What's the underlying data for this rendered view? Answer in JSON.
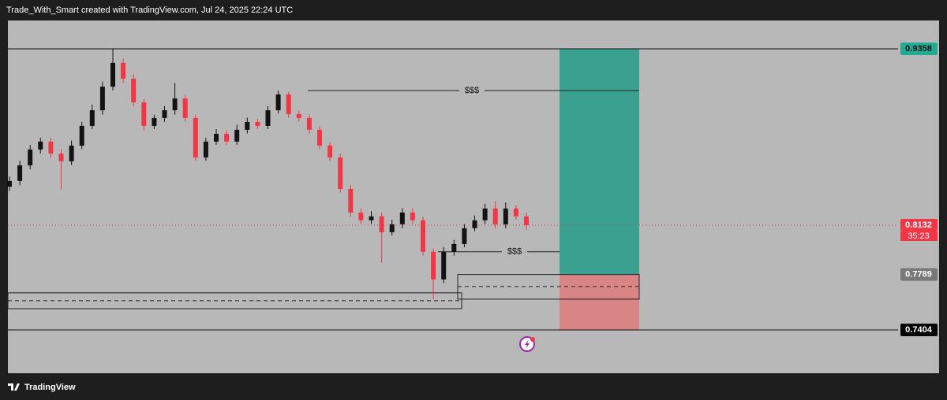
{
  "header": {
    "title": "Trade_With_Smart created with TradingView.com, Jul 24, 2025 22:24 UTC"
  },
  "footer": {
    "brand": "TradingView"
  },
  "chart_data": {
    "type": "candlestick",
    "ylim": [
      0.7103,
      0.9555
    ],
    "yticks": [
      0.9358,
      0.8132,
      0.7789,
      0.7404
    ],
    "countdown": "35:23",
    "up_color": "#131313",
    "down_color": "#f23645",
    "open": [
      0.84,
      0.8439,
      0.8548,
      0.8658,
      0.8713,
      0.863,
      0.8576,
      0.8685,
      0.8822,
      0.8931,
      0.9095,
      0.926,
      0.915,
      0.8986,
      0.8822,
      0.8877,
      0.8931,
      0.9013,
      0.8877,
      0.8603,
      0.8713,
      0.8767,
      0.8713,
      0.8795,
      0.8849,
      0.8822,
      0.8931,
      0.9041,
      0.8904,
      0.8877,
      0.8795,
      0.8685,
      0.8603,
      0.8384,
      0.822,
      0.8166,
      0.8193,
      0.8083,
      0.8138,
      0.822,
      0.8166,
      0.7947,
      0.7755,
      0.7947,
      0.8001,
      0.8111,
      0.8166,
      0.8248,
      0.8138,
      0.8248,
      0.8193
    ],
    "high": [
      0.847,
      0.858,
      0.869,
      0.874,
      0.874,
      0.866,
      0.872,
      0.885,
      0.897,
      0.913,
      0.9358,
      0.929,
      0.918,
      0.901,
      0.89,
      0.896,
      0.912,
      0.904,
      0.89,
      0.874,
      0.88,
      0.879,
      0.883,
      0.888,
      0.887,
      0.896,
      0.9068,
      0.906,
      0.893,
      0.89,
      0.882,
      0.871,
      0.863,
      0.841,
      0.825,
      0.823,
      0.822,
      0.817,
      0.825,
      0.825,
      0.819,
      0.797,
      0.798,
      0.803,
      0.814,
      0.82,
      0.828,
      0.83,
      0.829,
      0.827,
      0.822
    ],
    "low": [
      0.837,
      0.841,
      0.852,
      0.863,
      0.86,
      0.838,
      0.855,
      0.866,
      0.88,
      0.89,
      0.907,
      0.912,
      0.896,
      0.879,
      0.88,
      0.885,
      0.89,
      0.885,
      0.858,
      0.858,
      0.869,
      0.869,
      0.869,
      0.877,
      0.88,
      0.88,
      0.891,
      0.888,
      0.885,
      0.877,
      0.866,
      0.858,
      0.836,
      0.819,
      0.814,
      0.814,
      0.787,
      0.806,
      0.811,
      0.814,
      0.792,
      0.7618,
      0.773,
      0.792,
      0.798,
      0.809,
      0.814,
      0.811,
      0.811,
      0.817,
      0.81
    ],
    "close": [
      0.8439,
      0.8548,
      0.8658,
      0.8713,
      0.863,
      0.8576,
      0.8685,
      0.8822,
      0.8931,
      0.9095,
      0.926,
      0.915,
      0.8986,
      0.8822,
      0.8877,
      0.8931,
      0.9013,
      0.8877,
      0.8603,
      0.8713,
      0.8767,
      0.8713,
      0.8795,
      0.8849,
      0.8822,
      0.8931,
      0.9041,
      0.8904,
      0.8877,
      0.8795,
      0.8685,
      0.8603,
      0.8384,
      0.822,
      0.8166,
      0.8193,
      0.8083,
      0.8138,
      0.822,
      0.8166,
      0.7947,
      0.7755,
      0.7947,
      0.8001,
      0.8111,
      0.8166,
      0.8248,
      0.8138,
      0.8248,
      0.8193,
      0.8132
    ],
    "annotations": [
      {
        "label": "$$$",
        "value": 0.9068
      },
      {
        "label": "$$$",
        "value": 0.7947
      }
    ],
    "zones": [
      {
        "top": 0.7662,
        "bottom": 0.7552,
        "dashed": 0.7607
      },
      {
        "top": 0.7789,
        "bottom": 0.7618,
        "dashed": 0.7706
      }
    ],
    "position": {
      "target_color": "#3aa08f",
      "stop_color": "#d98585"
    }
  }
}
